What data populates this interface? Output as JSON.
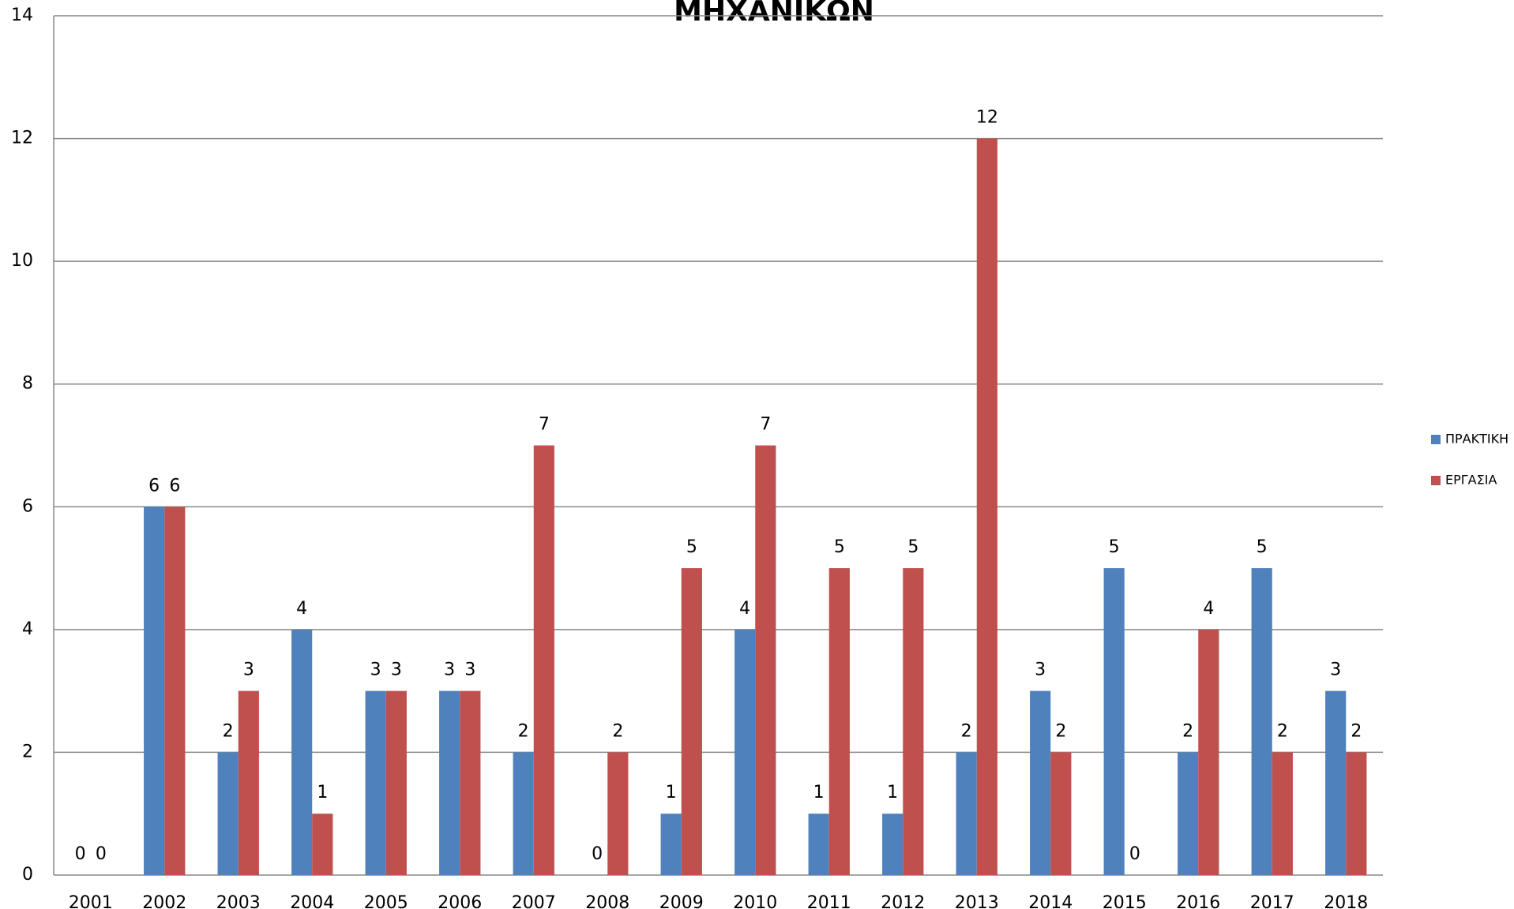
{
  "chart_data": {
    "type": "bar",
    "title": "ΜΗΧΑΝΙΚΩΝ",
    "categories": [
      "2001",
      "2002",
      "2003",
      "2004",
      "2005",
      "2006",
      "2007",
      "2008",
      "2009",
      "2010",
      "2011",
      "2012",
      "2013",
      "2014",
      "2015",
      "2016",
      "2017",
      "2018"
    ],
    "series": [
      {
        "name": "ΠΡΑΚΤΙΚΗ",
        "color": "#4f81bd",
        "values": [
          0,
          6,
          2,
          4,
          3,
          3,
          2,
          0,
          1,
          4,
          1,
          1,
          2,
          3,
          5,
          2,
          5,
          3
        ]
      },
      {
        "name": "ΕΡΓΑΣΙΑ",
        "color": "#c0504d",
        "values": [
          0,
          6,
          3,
          1,
          3,
          3,
          7,
          2,
          5,
          7,
          5,
          5,
          12,
          2,
          0,
          4,
          2,
          2
        ]
      }
    ],
    "ylim": [
      0,
      14
    ],
    "yticks": [
      0,
      2,
      4,
      6,
      8,
      10,
      12,
      14
    ],
    "grid": true,
    "legend": "right"
  }
}
